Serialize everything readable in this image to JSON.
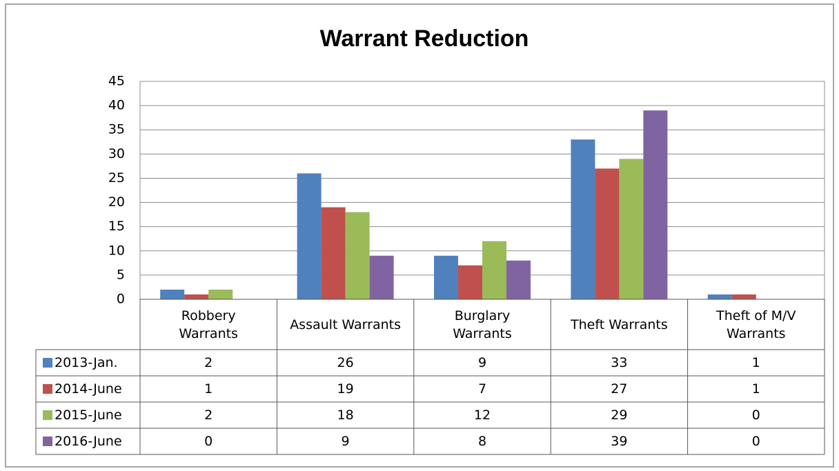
{
  "chart_data": {
    "type": "bar",
    "title": "Warrant Reduction",
    "categories": [
      "Robbery\nWarrants",
      "Assault Warrants",
      "Burglary\nWarrants",
      "Theft Warrants",
      "Theft of M/V\nWarrants"
    ],
    "series": [
      {
        "name": "2013-Jan.",
        "color": "#4f81bd",
        "values": [
          2,
          26,
          9,
          33,
          1
        ]
      },
      {
        "name": "2014-June",
        "color": "#c0504d",
        "values": [
          1,
          19,
          7,
          27,
          1
        ]
      },
      {
        "name": "2015-June",
        "color": "#9bbb59",
        "values": [
          2,
          18,
          12,
          29,
          0
        ]
      },
      {
        "name": "2016-June",
        "color": "#8064a2",
        "values": [
          0,
          9,
          8,
          39,
          0
        ]
      }
    ],
    "ylim": [
      0,
      45
    ],
    "yticks": [
      0,
      5,
      10,
      15,
      20,
      25,
      30,
      35,
      40,
      45
    ],
    "grid": true
  }
}
